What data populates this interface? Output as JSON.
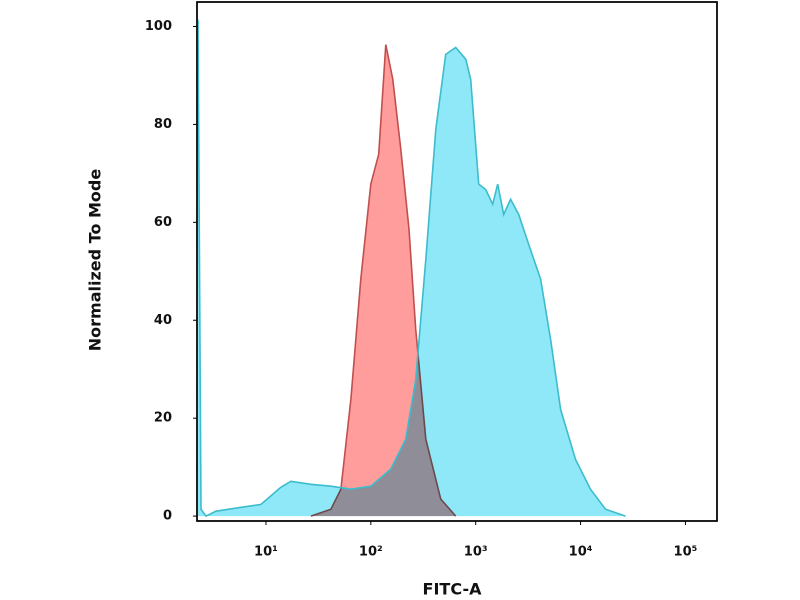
{
  "chart_data": {
    "type": "area",
    "xlabel": "FITC-A",
    "ylabel": "Normalized To Mode",
    "xscale": "log",
    "xlim": [
      2.2,
      200000
    ],
    "ylim": [
      -1,
      105
    ],
    "xticks": [
      {
        "value": 10,
        "label": "10¹"
      },
      {
        "value": 100,
        "label": "10²"
      },
      {
        "value": 1000,
        "label": "10³"
      },
      {
        "value": 10000,
        "label": "10⁴"
      },
      {
        "value": 100000,
        "label": "10⁵"
      }
    ],
    "yticks": [
      0,
      20,
      40,
      60,
      80,
      100
    ],
    "grid": false,
    "series": [
      {
        "color": "#ff9c9c",
        "line_color": "#c0504d",
        "x": [
          26.8,
          41.6,
          51.8,
          64.5,
          80.3,
          100,
          119,
          139,
          162,
          193,
          231,
          268,
          334,
          464,
          645
        ],
        "values": [
          0,
          1.4,
          5.5,
          23.9,
          48.4,
          67.8,
          73.9,
          96.3,
          89.2,
          74.9,
          58.6,
          38.2,
          15.7,
          3.5,
          0
        ]
      },
      {
        "color": "#8fe8f8",
        "line_color": "#3cbccc",
        "x": [
          2.25,
          2.4,
          2.68,
          3.34,
          5.78,
          8.96,
          13.9,
          17.3,
          26.8,
          41.6,
          64.5,
          100,
          155,
          215,
          268,
          334,
          416,
          518,
          645,
          804,
          896,
          1069,
          1245,
          1452,
          1621,
          1849,
          2154,
          2570,
          3199,
          4159,
          5176,
          6452,
          8955,
          12450,
          17300,
          26850
        ],
        "values": [
          101.4,
          1.4,
          0,
          1,
          1.8,
          2.4,
          5.9,
          7.1,
          6.5,
          6.1,
          5.5,
          6.1,
          9.6,
          15.7,
          27.8,
          52.4,
          79,
          94.3,
          95.7,
          93.3,
          89.2,
          67.8,
          66.7,
          63.7,
          67.8,
          61.6,
          64.7,
          61.6,
          55.5,
          48.4,
          36.1,
          21.8,
          11.6,
          5.5,
          1.4,
          0
        ]
      }
    ]
  }
}
